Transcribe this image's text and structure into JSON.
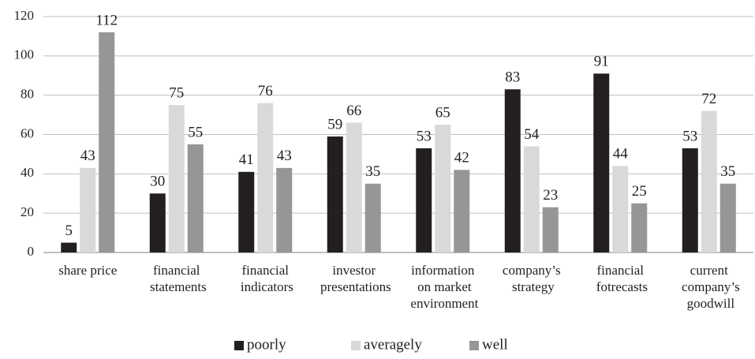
{
  "chart_data": {
    "type": "bar",
    "categories": [
      "share price",
      "financial statements",
      "financial indicators",
      "investor presentations",
      "information on market environment",
      "company’s strategy",
      "financial fotrecasts",
      "current company’s goodwill"
    ],
    "series": [
      {
        "name": "poorly",
        "color": "#231f20",
        "values": [
          5,
          30,
          41,
          59,
          53,
          83,
          91,
          53
        ]
      },
      {
        "name": "averagely",
        "color": "#d9d9d9",
        "values": [
          43,
          75,
          76,
          66,
          65,
          54,
          44,
          72
        ]
      },
      {
        "name": "well",
        "color": "#969696",
        "values": [
          112,
          55,
          43,
          35,
          42,
          23,
          25,
          35
        ]
      }
    ],
    "ylim": [
      0,
      120
    ],
    "yticks": [
      0,
      20,
      40,
      60,
      80,
      100,
      120
    ],
    "grid": true,
    "legend": "bottom"
  }
}
